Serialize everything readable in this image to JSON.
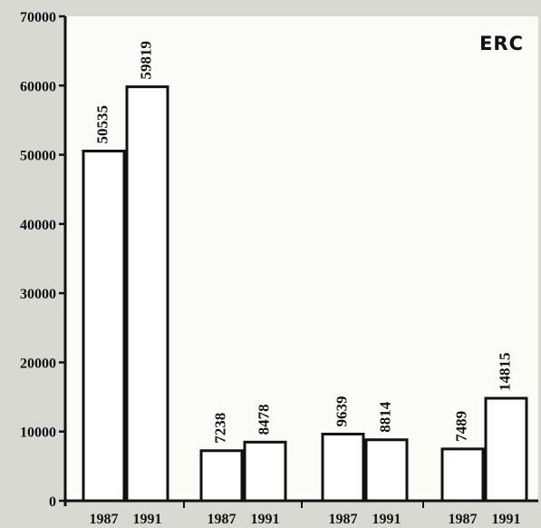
{
  "chart_data": {
    "type": "bar",
    "title": "ERC",
    "xlabel": "",
    "ylabel": "",
    "ylim": [
      0,
      70000
    ],
    "yticks": [
      0,
      10000,
      20000,
      30000,
      40000,
      50000,
      60000,
      70000
    ],
    "grid": false,
    "legend": "none",
    "groups": [
      {
        "categories": [
          "1987",
          "1991"
        ],
        "values": [
          50535,
          59819
        ]
      },
      {
        "categories": [
          "1987",
          "1991"
        ],
        "values": [
          7238,
          8478
        ]
      },
      {
        "categories": [
          "1987",
          "1991"
        ],
        "values": [
          9639,
          8814
        ]
      },
      {
        "categories": [
          "1987",
          "1991"
        ],
        "values": [
          7489,
          14815
        ]
      }
    ],
    "colors": {
      "bar_fill": "#ffffff",
      "bar_stroke": "#111111",
      "axis": "#111111",
      "panel": "#ffffff"
    }
  }
}
